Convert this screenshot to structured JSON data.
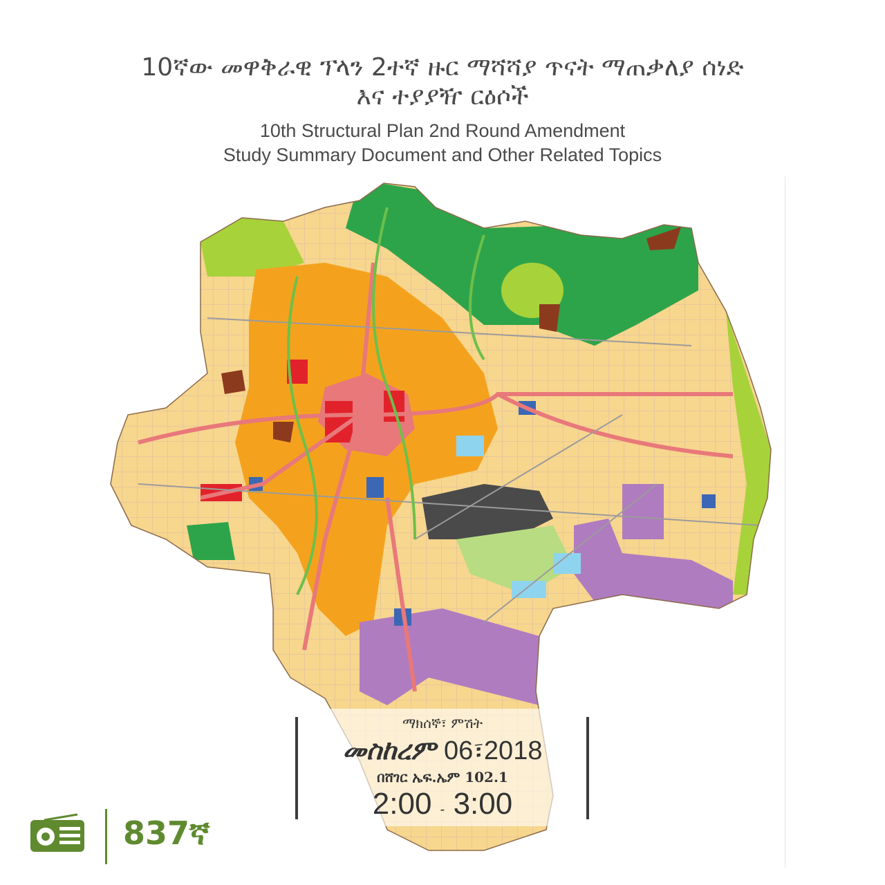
{
  "header": {
    "title_amharic_line1": "10ኛው መዋቅራዊ ፕላን 2ተኛ ዙር ማሻሻያ ጥናት ማጠቃለያ ሰነድ",
    "title_amharic_line2": "እና ተያያዥ ርዕሶች",
    "title_english_line1": "10th Structural Plan 2nd Round Amendment",
    "title_english_line2": "Study Summary Document and Other Related Topics"
  },
  "schedule": {
    "day_label": "ማክሰኞ፣ ምሽት",
    "month": "መስከረም",
    "day": "06",
    "separator": "፣",
    "year": "2018",
    "station": "በሸገር ኤፍ.ኤም 102.1",
    "time_start": "2:00",
    "time_dash": "-",
    "time_end": "3:00"
  },
  "footer": {
    "episode": "837ኛ",
    "icon": "radio-icon"
  },
  "colors": {
    "brand_green": "#5f8a2f",
    "text": "#4a4a4a",
    "residential": "#f7d68e",
    "mixed_use": "#f4a21e",
    "commercial": "#e2222b",
    "roads": "#e8787a",
    "forest": "#2ea44a",
    "green_space": "#a8d23a",
    "industrial": "#b07cc0",
    "services": "#3c67b4",
    "water": "#8fd4ef",
    "airport": "#4a4a4a",
    "special": "#8c3a1e"
  }
}
